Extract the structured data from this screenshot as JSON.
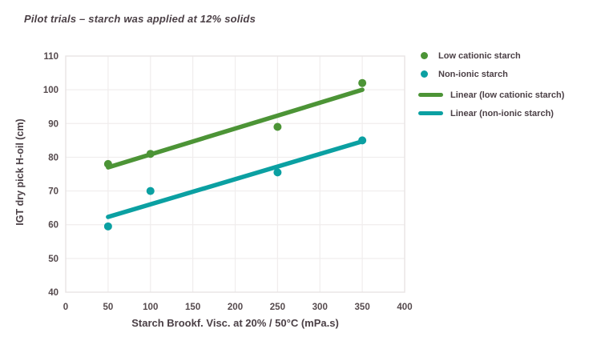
{
  "title": "Pilot trials – starch was applied at 12% solids",
  "colors": {
    "green": "#4c9436",
    "teal": "#0ba0a2",
    "text": "#554a4d",
    "grid": "#f0eded",
    "border": "#e8e4e4"
  },
  "chart_data": {
    "type": "scatter",
    "title": "Pilot trials – starch was applied at 12% solids",
    "xlabel": "Starch Brookf. Visc. at 20% / 50°C (mPa.s)",
    "ylabel": "IGT dry pick H-oil (cm)",
    "xlim": [
      0,
      400
    ],
    "ylim": [
      40,
      110
    ],
    "xticks": [
      0,
      50,
      100,
      150,
      200,
      250,
      300,
      350,
      400
    ],
    "yticks": [
      40,
      50,
      60,
      70,
      80,
      90,
      100,
      110
    ],
    "grid": true,
    "legend_position": "right",
    "series": [
      {
        "name": "Low cationic starch",
        "color": "#4c9436",
        "x": [
          50,
          100,
          250,
          350
        ],
        "y": [
          78,
          81,
          89,
          102
        ],
        "trend": {
          "label": "Linear (low cationic starch)",
          "x": [
            50,
            350
          ],
          "y": [
            77,
            100
          ]
        }
      },
      {
        "name": "Non-ionic starch",
        "color": "#0ba0a2",
        "x": [
          50,
          100,
          250,
          350
        ],
        "y": [
          59.5,
          70,
          75.5,
          85
        ],
        "trend": {
          "label": "Linear (non-ionic starch)",
          "x": [
            50,
            350
          ],
          "y": [
            62.3,
            84.7
          ]
        }
      }
    ],
    "legend": [
      "Low cationic starch",
      "Non-ionic starch",
      "Linear (low cationic starch)",
      "Linear (non-ionic starch)"
    ]
  }
}
